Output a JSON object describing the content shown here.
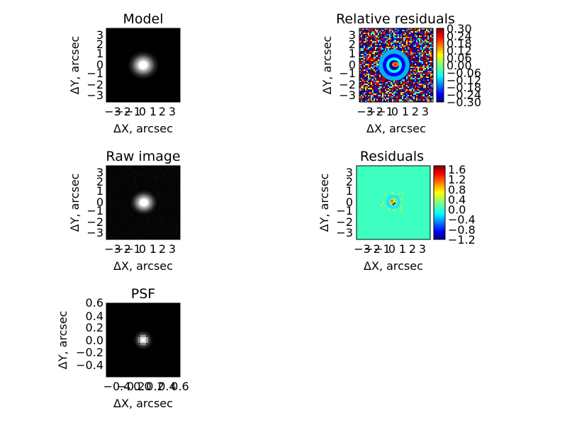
{
  "chart_data": [
    {
      "type": "heatmap",
      "title": "Model",
      "xlabel": "ΔX, arcsec",
      "ylabel": "ΔY, arcsec",
      "xlim": [
        -3.6,
        3.6
      ],
      "ylim": [
        -3.6,
        3.6
      ],
      "x_ticks": [
        "−3",
        "−2",
        "−1",
        "0",
        "1",
        "2",
        "3"
      ],
      "y_ticks": [
        "3",
        "2",
        "1",
        "0",
        "−1",
        "−2",
        "−3"
      ],
      "colormap": "gray",
      "source_center": [
        0.0,
        0.0
      ]
    },
    {
      "type": "heatmap",
      "title": "Relative residuals",
      "xlabel": "ΔX, arcsec",
      "ylabel": "ΔY, arcsec",
      "xlim": [
        -3.6,
        3.6
      ],
      "ylim": [
        -3.6,
        3.6
      ],
      "x_ticks": [
        "−3",
        "−2",
        "−1",
        "0",
        "1",
        "2",
        "3"
      ],
      "y_ticks": [
        "3",
        "2",
        "1",
        "0",
        "−1",
        "−2",
        "−3"
      ],
      "colormap": "jet",
      "colorbar": {
        "vmin": -0.3,
        "vmax": 0.3,
        "ticks": [
          "0.30",
          "0.24",
          "0.18",
          "0.12",
          "0.06",
          "0.00",
          "−0.06",
          "−0.12",
          "−0.18",
          "−0.24",
          "−0.30"
        ]
      }
    },
    {
      "type": "heatmap",
      "title": "Raw image",
      "xlabel": "ΔX, arcsec",
      "ylabel": "ΔY, arcsec",
      "xlim": [
        -3.6,
        3.6
      ],
      "ylim": [
        -3.6,
        3.6
      ],
      "x_ticks": [
        "−3",
        "−2",
        "−1",
        "0",
        "1",
        "2",
        "3"
      ],
      "y_ticks": [
        "3",
        "2",
        "1",
        "0",
        "−1",
        "−2",
        "−3"
      ],
      "colormap": "gray",
      "source_center": [
        0.0,
        0.0
      ]
    },
    {
      "type": "heatmap",
      "title": "Residuals",
      "xlabel": "ΔX, arcsec",
      "ylabel": "ΔY, arcsec",
      "xlim": [
        -3.6,
        3.6
      ],
      "ylim": [
        -3.6,
        3.6
      ],
      "x_ticks": [
        "−3",
        "−2",
        "−1",
        "0",
        "1",
        "2",
        "3"
      ],
      "y_ticks": [
        "3",
        "2",
        "1",
        "0",
        "−1",
        "−2",
        "−3"
      ],
      "colormap": "jet",
      "colorbar": {
        "vmin": -1.4,
        "vmax": 1.8,
        "ticks": [
          "1.6",
          "1.2",
          "0.8",
          "0.4",
          "0.0",
          "−0.4",
          "−0.8",
          "−1.2"
        ]
      }
    },
    {
      "type": "heatmap",
      "title": "PSF",
      "xlabel": "ΔX, arcsec",
      "ylabel": "ΔY, arcsec",
      "xlim": [
        -0.6,
        0.6
      ],
      "ylim": [
        -0.6,
        0.6
      ],
      "x_ticks": [
        "−0.4",
        "−0.2",
        "0.0",
        "0.2",
        "0.4",
        "0.6"
      ],
      "y_ticks": [
        "0.6",
        "0.4",
        "0.2",
        "0.0",
        "−0.2",
        "−0.4"
      ],
      "colormap": "gray",
      "source_center": [
        0.0,
        0.0
      ]
    }
  ]
}
